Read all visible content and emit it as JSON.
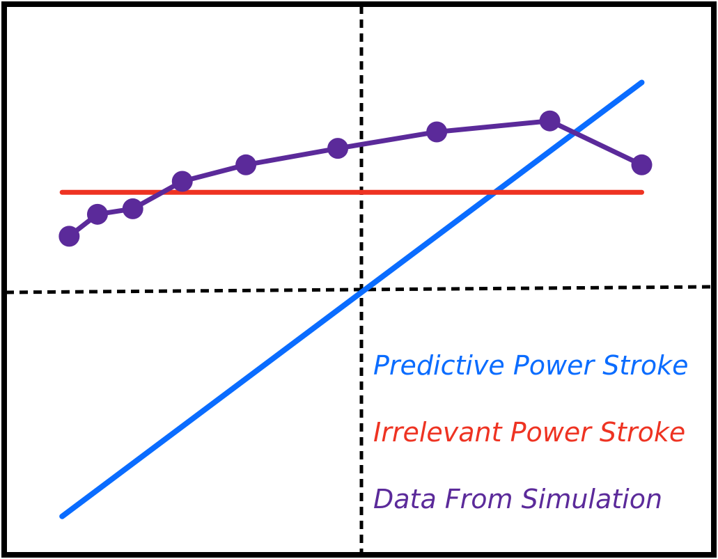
{
  "chart_data": {
    "type": "line",
    "title": "",
    "xlabel": "",
    "ylabel": "",
    "grid": false,
    "legend_position": "bottom-right",
    "axes": "dashed crosshair through center",
    "xlim": [
      0,
      1
    ],
    "ylim": [
      0,
      1
    ],
    "series": [
      {
        "name": "Predictive Power Stroke",
        "color": "#0a6cff",
        "kind": "line",
        "points": [
          [
            0.08,
            0.07
          ],
          [
            0.9,
            0.86
          ]
        ]
      },
      {
        "name": "Irrelevant Power Stroke",
        "color": "#ee3322",
        "kind": "line",
        "points": [
          [
            0.08,
            0.66
          ],
          [
            0.9,
            0.66
          ]
        ]
      },
      {
        "name": "Data From Simulation",
        "color": "#5b2a9a",
        "kind": "line-markers",
        "points": [
          [
            0.09,
            0.58
          ],
          [
            0.13,
            0.62
          ],
          [
            0.18,
            0.63
          ],
          [
            0.25,
            0.68
          ],
          [
            0.34,
            0.71
          ],
          [
            0.47,
            0.74
          ],
          [
            0.61,
            0.77
          ],
          [
            0.77,
            0.79
          ],
          [
            0.9,
            0.71
          ]
        ]
      }
    ]
  }
}
